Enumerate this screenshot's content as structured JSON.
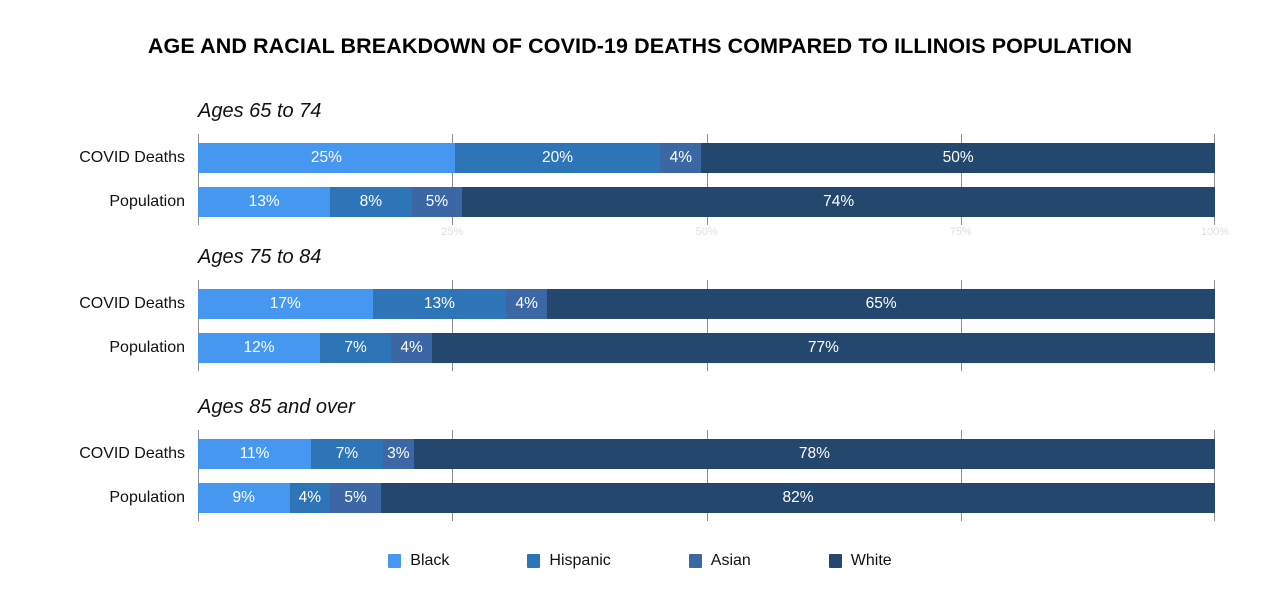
{
  "title": "AGE AND RACIAL BREAKDOWN OF COVID-19 DEATHS COMPARED TO ILLINOIS POPULATION",
  "series_colors": {
    "Black": "#4597F0",
    "Hispanic": "#2E75B8",
    "Asian": "#3B68A5",
    "White": "#24476E"
  },
  "legend": {
    "items": [
      {
        "label": "Black",
        "color": "#4597F0"
      },
      {
        "label": "Hispanic",
        "color": "#2E75B8"
      },
      {
        "label": "Asian",
        "color": "#3B68A5"
      },
      {
        "label": "White",
        "color": "#24476E"
      }
    ]
  },
  "axis": {
    "tick_labels": [
      "25%",
      "50%",
      "75%",
      "100%"
    ],
    "tick_positions": [
      25,
      50,
      75,
      100
    ],
    "gridline_positions": [
      0,
      25,
      50,
      75,
      100
    ]
  },
  "chart_data": {
    "type": "bar",
    "stacked": true,
    "orientation": "horizontal",
    "title": "AGE AND RACIAL BREAKDOWN OF COVID-19 DEATHS COMPARED TO ILLINOIS POPULATION",
    "categories": [
      "Black",
      "Hispanic",
      "Asian",
      "White"
    ],
    "unit": "%",
    "xlim": [
      0,
      100
    ],
    "grid": true,
    "legend_position": "bottom",
    "groups": [
      {
        "label": "Ages 65 to 74",
        "rows": [
          {
            "label": "COVID Deaths",
            "values": [
              25,
              20,
              4,
              50
            ]
          },
          {
            "label": "Population",
            "values": [
              13,
              8,
              5,
              74
            ]
          }
        ]
      },
      {
        "label": "Ages 75 to 84",
        "rows": [
          {
            "label": "COVID Deaths",
            "values": [
              17,
              13,
              4,
              65
            ]
          },
          {
            "label": "Population",
            "values": [
              12,
              7,
              4,
              77
            ]
          }
        ]
      },
      {
        "label": "Ages 85 and over",
        "rows": [
          {
            "label": "COVID Deaths",
            "values": [
              11,
              7,
              3,
              78
            ]
          },
          {
            "label": "Population",
            "values": [
              9,
              4,
              5,
              82
            ]
          }
        ]
      }
    ]
  }
}
